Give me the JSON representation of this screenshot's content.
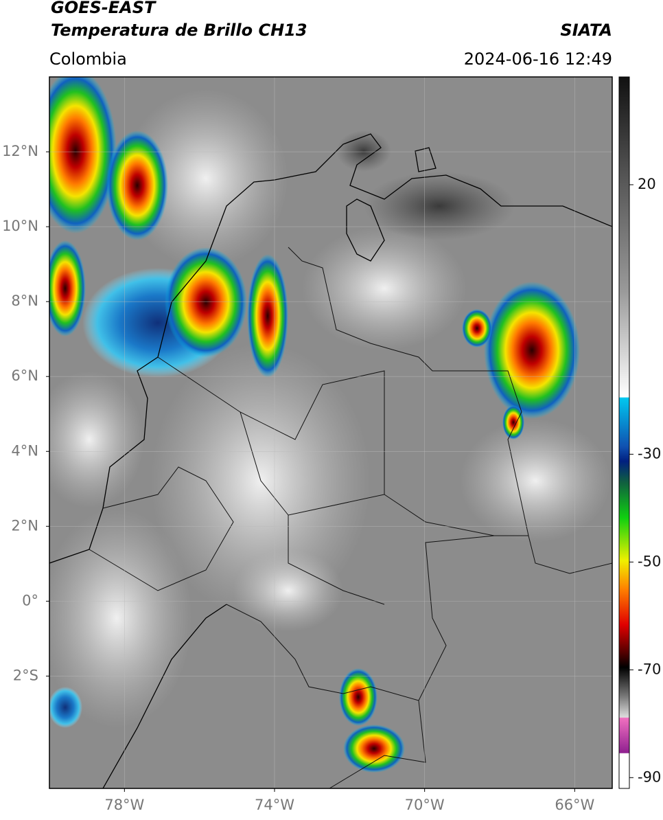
{
  "header": {
    "title": "GOES-EAST",
    "subtitle": "Temperatura de Brillo CH13",
    "region": "Colombia",
    "source": "SIATA",
    "datetime": "2024-06-16 12:49"
  },
  "map": {
    "lat_range": [
      -5,
      14
    ],
    "lon_range": [
      -80,
      -65
    ],
    "lat_ticks": [
      {
        "value": 12,
        "label": "12°N"
      },
      {
        "value": 10,
        "label": "10°N"
      },
      {
        "value": 8,
        "label": "8°N"
      },
      {
        "value": 6,
        "label": "6°N"
      },
      {
        "value": 4,
        "label": "4°N"
      },
      {
        "value": 2,
        "label": "2°N"
      },
      {
        "value": 0,
        "label": "0°"
      },
      {
        "value": -2,
        "label": "2°S"
      }
    ],
    "lon_ticks": [
      {
        "value": -78,
        "label": "78°W"
      },
      {
        "value": -74,
        "label": "74°W"
      },
      {
        "value": -70,
        "label": "70°W"
      },
      {
        "value": -66,
        "label": "66°W"
      }
    ]
  },
  "colorbar": {
    "range": [
      -92,
      40
    ],
    "ticks": [
      20,
      -30,
      -50,
      -70,
      -90
    ]
  }
}
